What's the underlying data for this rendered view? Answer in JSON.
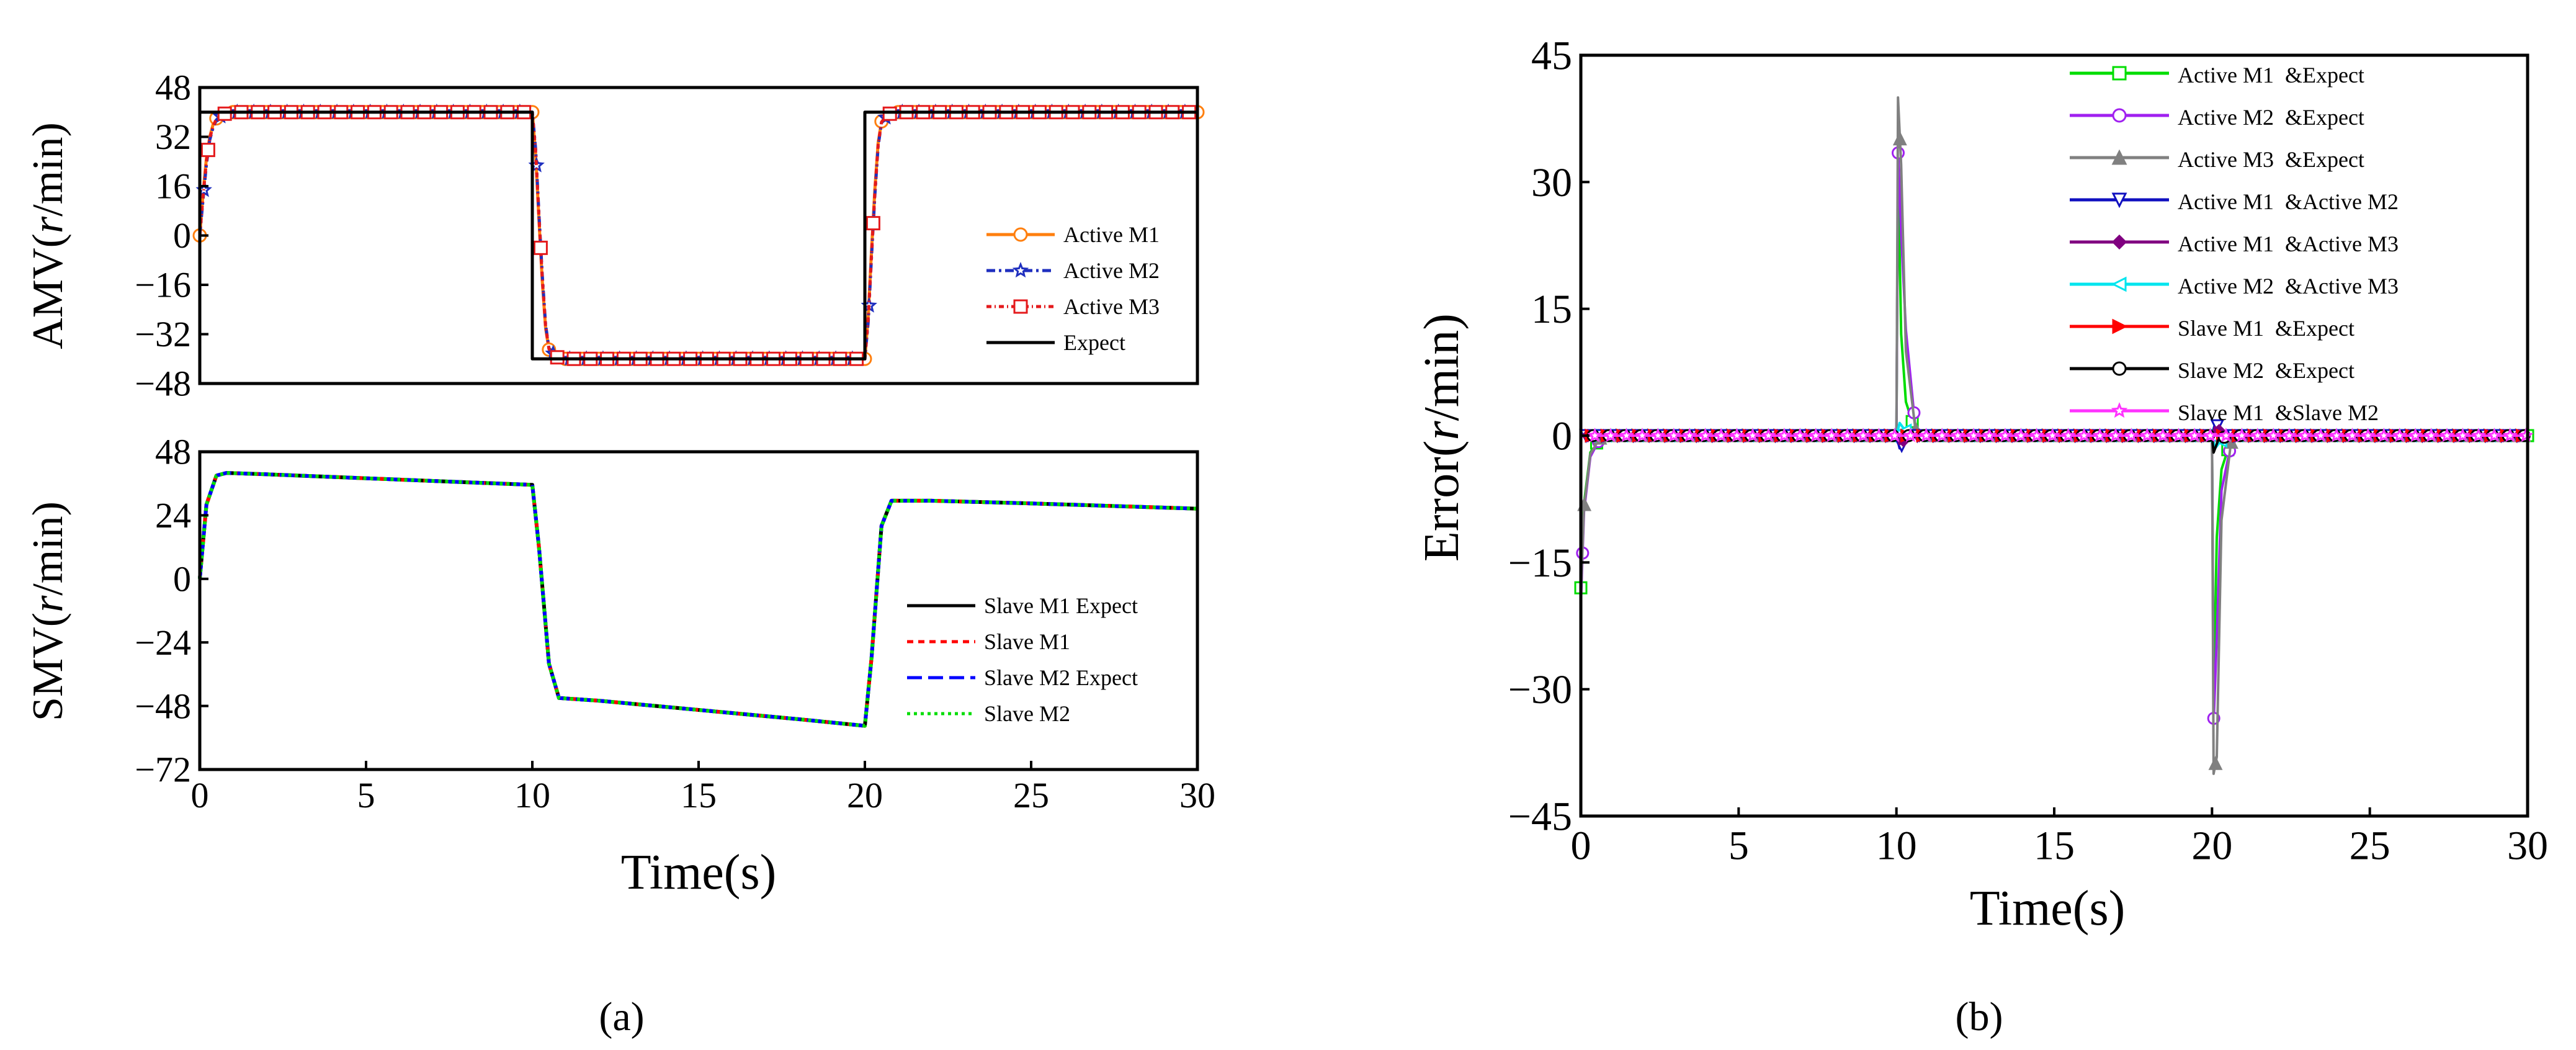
{
  "panel_labels": {
    "a": "(a)",
    "b": "(b)"
  },
  "colors": {
    "active_m1": "#ff7f0e",
    "active_m2": "#1f2fbf",
    "active_m3": "#e41a1c",
    "expect": "#000000",
    "slave_m1": "#ff0000",
    "slave_m2_expect": "#0000ff",
    "slave_m2": "#00dd00"
  },
  "chart_data": [
    {
      "id": "amv",
      "type": "line",
      "ylabel_prefix": "AMV(",
      "ylabel_italic": "r",
      "ylabel_suffix": "/min)",
      "xlabel": "",
      "xlim": [
        0,
        30
      ],
      "ylim": [
        -48,
        48
      ],
      "yticks": [
        48,
        32,
        16,
        0,
        -16,
        -32,
        -48
      ],
      "xticks": [],
      "legend_position": "center-right",
      "series": [
        {
          "name": "Active M1",
          "color": "#ff7f0e",
          "dash": "",
          "marker": "circle",
          "x": [
            0,
            0.1,
            0.2,
            0.3,
            0.4,
            0.5,
            0.7,
            1,
            3,
            5,
            7,
            9,
            10,
            10.1,
            10.2,
            10.3,
            10.4,
            10.5,
            10.7,
            11,
            13,
            15,
            17,
            19,
            20,
            20.1,
            20.2,
            20.3,
            20.4,
            20.5,
            20.7,
            21,
            25,
            30
          ],
          "y": [
            0,
            14,
            25,
            32,
            36,
            38,
            39.5,
            40,
            40,
            40,
            40,
            40,
            40,
            26,
            5,
            -15,
            -30,
            -37,
            -39.5,
            -40,
            -40,
            -40,
            -40,
            -40,
            -40,
            -26,
            -5,
            15,
            30,
            37,
            39.5,
            40,
            40,
            40
          ]
        },
        {
          "name": "Active M2",
          "color": "#1f2fbf",
          "dash": "14 6 4 6",
          "marker": "star",
          "x": [
            0,
            0.1,
            0.2,
            0.3,
            0.4,
            0.5,
            0.7,
            1,
            3,
            5,
            7,
            9,
            10,
            10.1,
            10.2,
            10.3,
            10.4,
            10.5,
            10.7,
            11,
            13,
            15,
            17,
            19,
            20,
            20.1,
            20.2,
            20.3,
            20.4,
            20.5,
            20.7,
            21,
            25,
            30
          ],
          "y": [
            0,
            12,
            23,
            31,
            35,
            37.5,
            39.3,
            40,
            40,
            40,
            40,
            40,
            40,
            28,
            7,
            -13,
            -29,
            -36.5,
            -39.3,
            -40,
            -40,
            -40,
            -40,
            -40,
            -40,
            -28,
            -7,
            13,
            29,
            36.5,
            39.3,
            40,
            40,
            40
          ]
        },
        {
          "name": "Active M3",
          "color": "#e41a1c",
          "dash": "8 5 2 5",
          "marker": "square",
          "x": [
            0,
            0.1,
            0.2,
            0.3,
            0.4,
            0.5,
            0.7,
            1,
            3,
            5,
            7,
            9,
            10,
            10.1,
            10.2,
            10.3,
            10.4,
            10.5,
            10.7,
            11,
            13,
            15,
            17,
            19,
            20,
            20.1,
            20.2,
            20.3,
            20.4,
            20.5,
            20.7,
            21,
            25,
            30
          ],
          "y": [
            0,
            13,
            24,
            31.5,
            35.5,
            37.8,
            39.4,
            40,
            40,
            40,
            40,
            40,
            40,
            27,
            6,
            -14,
            -29.5,
            -36.8,
            -39.4,
            -40,
            -40,
            -40,
            -40,
            -40,
            -40,
            -27,
            -6,
            14,
            29.5,
            36.8,
            39.4,
            40,
            40,
            40
          ]
        },
        {
          "name": "Expect",
          "color": "#000000",
          "dash": "",
          "marker": "none",
          "x": [
            0,
            0,
            10,
            10,
            20,
            20,
            30
          ],
          "y": [
            0,
            40,
            40,
            -40,
            -40,
            40,
            40
          ]
        }
      ]
    },
    {
      "id": "smv",
      "type": "line",
      "ylabel_prefix": "SMV(",
      "ylabel_italic": "r",
      "ylabel_suffix": "/min)",
      "xlabel": "Time(s)",
      "xlim": [
        0,
        30
      ],
      "ylim": [
        -72,
        48
      ],
      "yticks": [
        48,
        24,
        0,
        -24,
        -48,
        -72
      ],
      "xticks": [
        0,
        5,
        10,
        15,
        20,
        25,
        30
      ],
      "legend_position": "center-right",
      "series": [
        {
          "name": "Slave M1 Expect",
          "color": "#000000",
          "dash": "",
          "x": [
            0,
            0.2,
            0.5,
            0.8,
            2,
            5,
            8,
            10,
            10.2,
            10.5,
            10.8,
            12,
            15,
            18,
            20,
            20.2,
            20.5,
            20.8,
            22,
            25,
            30
          ],
          "y": [
            0,
            28,
            39,
            40,
            39.5,
            38,
            36.5,
            35.5,
            12,
            -32,
            -45,
            -46,
            -49.5,
            -53,
            -55.5,
            -30,
            20,
            29.5,
            29.5,
            28.5,
            26.5
          ]
        },
        {
          "name": "Slave M1",
          "color": "#ff0000",
          "dash": "10 8",
          "x": [
            0,
            0.2,
            0.5,
            0.8,
            2,
            5,
            8,
            10,
            10.2,
            10.5,
            10.8,
            12,
            15,
            18,
            20,
            20.2,
            20.5,
            20.8,
            22,
            25,
            30
          ],
          "y": [
            0,
            28,
            39,
            40,
            39.5,
            38,
            36.5,
            35.5,
            12,
            -32,
            -45,
            -46,
            -49.5,
            -53,
            -55.5,
            -30,
            20,
            29.5,
            29.5,
            28.5,
            26.5
          ]
        },
        {
          "name": "Slave M2 Expect",
          "color": "#0000ff",
          "dash": "24 10",
          "x": [
            0,
            0.2,
            0.5,
            0.8,
            2,
            5,
            8,
            10,
            10.2,
            10.5,
            10.8,
            12,
            15,
            18,
            20,
            20.2,
            20.5,
            20.8,
            22,
            25,
            30
          ],
          "y": [
            0,
            28,
            39,
            40,
            39.5,
            38,
            36.5,
            35.5,
            12,
            -32,
            -45,
            -46,
            -49.5,
            -53,
            -55.5,
            -30,
            20,
            29.5,
            29.5,
            28.5,
            26.5
          ]
        },
        {
          "name": "Slave M2",
          "color": "#00dd00",
          "dash": "5 6",
          "x": [
            0,
            0.2,
            0.5,
            0.8,
            2,
            5,
            8,
            10,
            10.2,
            10.5,
            10.8,
            12,
            15,
            18,
            20,
            20.2,
            20.5,
            20.8,
            22,
            25,
            30
          ],
          "y": [
            0,
            28,
            39,
            40,
            39.5,
            38,
            36.5,
            35.5,
            12,
            -32,
            -45,
            -46,
            -49.5,
            -53,
            -55.5,
            -30,
            20,
            29.5,
            29.5,
            28.5,
            26.5
          ]
        }
      ]
    },
    {
      "id": "error",
      "type": "line",
      "ylabel_prefix": "Error(",
      "ylabel_italic": "r",
      "ylabel_suffix": "/min)",
      "xlabel": "Time(s)",
      "xlim": [
        0,
        30
      ],
      "ylim": [
        -45,
        45
      ],
      "yticks": [
        45,
        30,
        15,
        0,
        -15,
        -30,
        -45
      ],
      "xticks": [
        0,
        5,
        10,
        15,
        20,
        25,
        30
      ],
      "legend_position": "top-right",
      "series": [
        {
          "name": "Active M1  &Expect",
          "color": "#00dd00",
          "marker": "square",
          "x": [
            0,
            0.1,
            0.3,
            0.6,
            1,
            10,
            10.05,
            10.15,
            10.3,
            10.6,
            11,
            20,
            20.05,
            20.15,
            20.3,
            20.6,
            21,
            30
          ],
          "y": [
            -18,
            -8,
            -2,
            -0.3,
            0,
            0,
            32,
            12,
            4,
            0.5,
            0,
            0,
            -32,
            -12,
            -4,
            -0.5,
            0,
            0
          ]
        },
        {
          "name": "Active M2  &Expect",
          "color": "#a020f0",
          "marker": "circle",
          "x": [
            0,
            0.1,
            0.3,
            0.6,
            1,
            10,
            10.05,
            10.15,
            10.3,
            10.6,
            11,
            20,
            20.05,
            20.15,
            20.3,
            20.6,
            21,
            30
          ],
          "y": [
            -20,
            -9,
            -2.5,
            -0.4,
            0,
            0,
            34,
            24,
            12.5,
            1,
            0,
            0,
            -34,
            -24,
            -6.5,
            -1,
            0,
            0
          ]
        },
        {
          "name": "Active M3  &Expect",
          "color": "#808080",
          "marker": "triangle-up",
          "x": [
            0,
            0.1,
            0.3,
            0.6,
            1,
            10,
            10.05,
            10.15,
            10.3,
            10.6,
            11,
            20,
            20.05,
            20.15,
            20.3,
            20.6,
            21,
            30
          ],
          "y": [
            -19,
            -8.5,
            -2.2,
            -0.3,
            0,
            0,
            40,
            32,
            10,
            0.8,
            0,
            0,
            -40,
            -38,
            -10,
            -0.8,
            0,
            0
          ]
        },
        {
          "name": "Active M1  &Active M2",
          "color": "#1010c0",
          "marker": "triangle-down",
          "x": [
            0,
            10,
            10.1,
            10.3,
            10.6,
            20,
            20.1,
            20.3,
            20.6,
            30
          ],
          "y": [
            0,
            0,
            -1.5,
            -0.5,
            0,
            0,
            1.5,
            0.5,
            0,
            0
          ]
        },
        {
          "name": "Active M1  &Active M3",
          "color": "#800080",
          "marker": "diamond",
          "x": [
            0,
            10,
            10.1,
            10.3,
            10.6,
            20,
            20.1,
            20.3,
            20.6,
            30
          ],
          "y": [
            0,
            0,
            -1,
            -0.3,
            0,
            0,
            1,
            0.3,
            0,
            0
          ]
        },
        {
          "name": "Active M2  &Active M3",
          "color": "#00e5ee",
          "marker": "triangle-left",
          "x": [
            0,
            10,
            10.1,
            10.3,
            10.6,
            20,
            20.1,
            20.3,
            20.6,
            30
          ],
          "y": [
            0,
            0,
            1.5,
            0.5,
            0,
            0,
            -1.5,
            -0.5,
            0,
            0
          ]
        },
        {
          "name": "Slave M1  &Expect",
          "color": "#ff0000",
          "marker": "triangle-right",
          "x": [
            0,
            30
          ],
          "y": [
            0,
            0
          ]
        },
        {
          "name": "Slave M2  &Expect",
          "color": "#000000",
          "marker": "circle",
          "x": [
            0,
            20,
            20.05,
            20.2,
            20.5,
            30
          ],
          "y": [
            0,
            0,
            -2,
            -0.5,
            0,
            0
          ]
        },
        {
          "name": "Slave M1  &Slave M2",
          "color": "#ff33ff",
          "marker": "star",
          "x": [
            0,
            30
          ],
          "y": [
            0,
            0
          ]
        }
      ]
    }
  ]
}
